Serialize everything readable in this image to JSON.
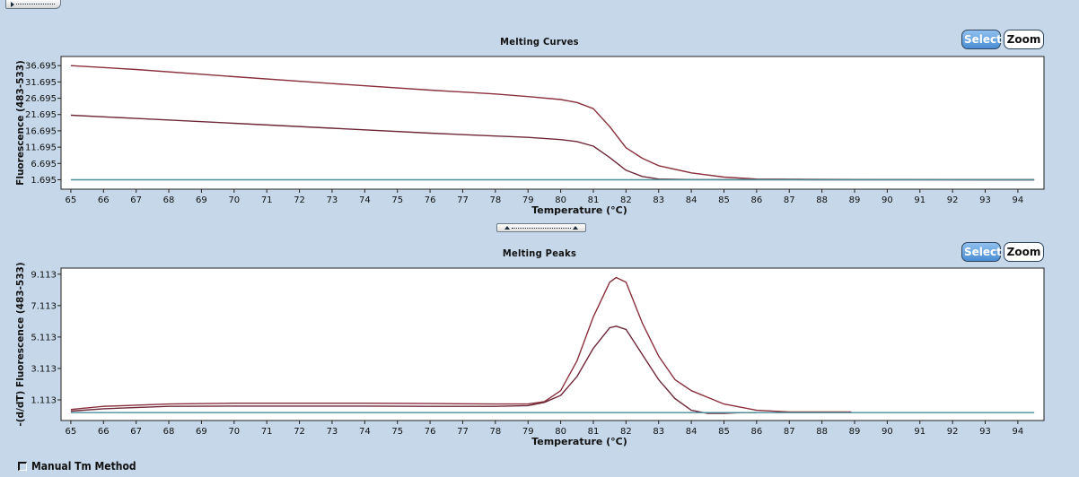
{
  "colors": {
    "background": "#c5d7e8",
    "curve_high": "#8a2f3c",
    "curve_low": "#6e2838",
    "baseline": "#4a8e9a"
  },
  "toolbar": {
    "expander_icon": "collapse-arrow-icon"
  },
  "panels": [
    {
      "title": "Melting Curves",
      "select_label": "Select",
      "zoom_label": "Zoom"
    },
    {
      "title": "Melting Peaks",
      "select_label": "Select",
      "zoom_label": "Zoom"
    }
  ],
  "footer": {
    "manual_tm_label": "Manual Tm Method",
    "manual_tm_checked": false
  },
  "chart_data": [
    {
      "type": "line",
      "title": "Melting Curves",
      "xlabel": "Temperature (°C)",
      "ylabel": "Fluorescence (483-533)",
      "xlim": [
        64.7,
        94.8
      ],
      "ylim": [
        -1.2,
        39.5
      ],
      "x_ticks": [
        65,
        66,
        67,
        68,
        69,
        70,
        71,
        72,
        73,
        74,
        75,
        76,
        77,
        78,
        79,
        80,
        81,
        82,
        83,
        84,
        85,
        86,
        87,
        88,
        89,
        90,
        91,
        92,
        93,
        94
      ],
      "y_ticks": [
        1.695,
        6.695,
        11.695,
        16.695,
        21.695,
        26.695,
        31.695,
        36.695
      ],
      "y_tick_labels": [
        "1.695",
        "6.695",
        "11.695",
        "16.695",
        "21.695",
        "26.695",
        "31.695",
        "36.695"
      ],
      "grid": false,
      "series": [
        {
          "color": "#8a2f3c",
          "x": [
            65,
            67,
            70,
            73,
            76,
            78,
            79,
            80,
            80.5,
            81,
            81.5,
            82,
            82.5,
            83,
            84,
            85,
            86,
            88,
            90,
            92,
            94.5
          ],
          "y": [
            36.7,
            35.5,
            33.3,
            31.2,
            29.2,
            28.0,
            27.2,
            26.3,
            25.4,
            23.5,
            18.0,
            11.5,
            8.3,
            6.0,
            3.8,
            2.5,
            1.9,
            1.8,
            1.75,
            1.72,
            1.7
          ]
        },
        {
          "color": "#6e2838",
          "x": [
            65,
            67,
            70,
            73,
            76,
            78,
            79,
            80,
            80.5,
            81,
            81.5,
            82,
            82.5,
            83,
            84,
            86,
            88,
            90,
            94.5
          ],
          "y": [
            21.5,
            20.5,
            19.0,
            17.5,
            16.0,
            15.1,
            14.7,
            14.0,
            13.4,
            12.0,
            8.5,
            4.6,
            2.7,
            1.9,
            1.75,
            1.72,
            1.7,
            1.7,
            1.7
          ]
        },
        {
          "color": "#4a8e9a",
          "x": [
            65,
            94.5
          ],
          "y": [
            1.695,
            1.695
          ]
        }
      ]
    },
    {
      "type": "line",
      "title": "Melting Peaks",
      "xlabel": "Temperature (°C)",
      "ylabel": "-(d/dT) Fluorescence (483-533)",
      "xlim": [
        64.7,
        94.8
      ],
      "ylim": [
        -0.2,
        9.5
      ],
      "x_ticks": [
        65,
        66,
        67,
        68,
        69,
        70,
        71,
        72,
        73,
        74,
        75,
        76,
        77,
        78,
        79,
        80,
        81,
        82,
        83,
        84,
        85,
        86,
        87,
        88,
        89,
        90,
        91,
        92,
        93,
        94
      ],
      "y_ticks": [
        1.113,
        3.113,
        5.113,
        7.113,
        9.113
      ],
      "y_tick_labels": [
        "1.113",
        "3.113",
        "5.113",
        "7.113",
        "9.113"
      ],
      "grid": false,
      "series": [
        {
          "color": "#8a2f3c",
          "x": [
            65,
            66,
            68,
            70,
            72,
            74,
            76,
            78,
            79,
            79.5,
            80,
            80.5,
            81,
            81.5,
            81.7,
            82,
            82.5,
            83,
            83.5,
            84,
            85,
            86,
            87,
            88,
            88.9
          ],
          "y": [
            0.5,
            0.7,
            0.85,
            0.9,
            0.9,
            0.9,
            0.88,
            0.85,
            0.85,
            1.0,
            1.7,
            3.6,
            6.4,
            8.6,
            8.9,
            8.6,
            6.0,
            3.9,
            2.4,
            1.7,
            0.85,
            0.45,
            0.35,
            0.35,
            0.35
          ]
        },
        {
          "color": "#6e2838",
          "x": [
            65,
            66,
            68,
            70,
            72,
            74,
            76,
            78,
            79,
            79.5,
            80,
            80.5,
            81,
            81.5,
            81.7,
            82,
            82.5,
            83,
            83.5,
            84,
            84.5,
            85,
            85.5,
            86
          ],
          "y": [
            0.4,
            0.55,
            0.7,
            0.72,
            0.72,
            0.72,
            0.7,
            0.7,
            0.75,
            0.95,
            1.4,
            2.6,
            4.4,
            5.7,
            5.8,
            5.6,
            4.0,
            2.4,
            1.2,
            0.45,
            0.25,
            0.25,
            0.3,
            0.3
          ]
        },
        {
          "color": "#4a8e9a",
          "x": [
            65,
            94.5
          ],
          "y": [
            0.3,
            0.3
          ]
        }
      ]
    }
  ]
}
